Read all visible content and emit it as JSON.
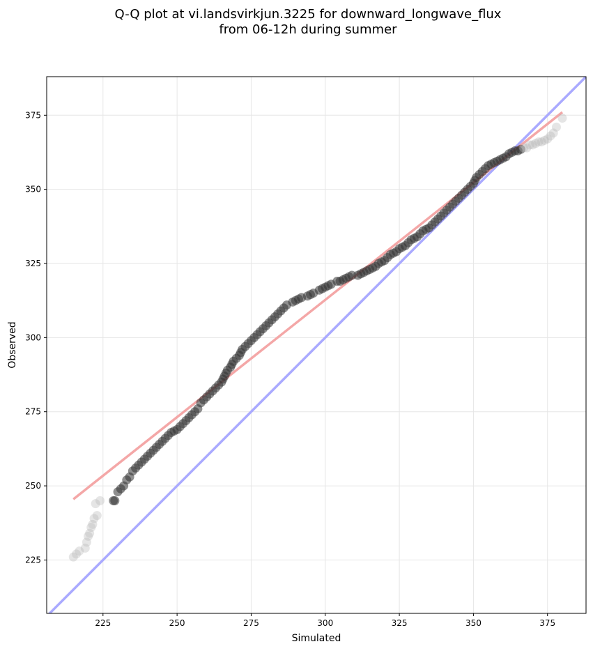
{
  "chart_data": {
    "type": "scatter",
    "title_line1": "Q-Q plot at vi.landsvirkjun.3225 for downward_longwave_flux",
    "title_line2": "from 06-12h during summer",
    "xlabel": "Simulated",
    "ylabel": "Observed",
    "xlim": [
      206,
      388
    ],
    "ylim": [
      207,
      388
    ],
    "xticks": [
      225,
      250,
      275,
      300,
      325,
      350,
      375
    ],
    "yticks": [
      225,
      250,
      275,
      300,
      325,
      350,
      375
    ],
    "grid": true,
    "identity_line": {
      "x": [
        206,
        388
      ],
      "y": [
        206,
        388
      ],
      "color": "#aaaaff"
    },
    "fit_line": {
      "x": [
        215,
        380
      ],
      "y": [
        245.5,
        376
      ],
      "color": "#f4a7a7"
    },
    "points": [
      [
        215,
        226
      ],
      [
        216,
        227
      ],
      [
        217,
        228
      ],
      [
        219,
        229
      ],
      [
        219.5,
        231
      ],
      [
        220,
        233
      ],
      [
        220.5,
        234
      ],
      [
        221,
        236
      ],
      [
        221.5,
        237
      ],
      [
        222,
        239
      ],
      [
        223,
        240
      ],
      [
        222.5,
        244
      ],
      [
        224,
        245
      ],
      [
        228.5,
        245
      ],
      [
        229,
        245
      ],
      [
        230,
        248
      ],
      [
        231,
        249
      ],
      [
        232,
        250
      ],
      [
        233,
        252
      ],
      [
        234,
        253
      ],
      [
        235,
        255
      ],
      [
        236,
        256
      ],
      [
        237,
        257
      ],
      [
        238,
        258
      ],
      [
        239,
        259
      ],
      [
        240,
        260
      ],
      [
        241,
        261
      ],
      [
        242,
        262
      ],
      [
        243,
        263
      ],
      [
        244,
        264
      ],
      [
        245,
        265
      ],
      [
        246,
        266
      ],
      [
        247,
        267
      ],
      [
        248,
        268
      ],
      [
        249,
        268.5
      ],
      [
        250,
        269
      ],
      [
        251,
        270
      ],
      [
        252,
        271
      ],
      [
        253,
        272
      ],
      [
        254,
        273
      ],
      [
        255,
        274
      ],
      [
        256,
        275
      ],
      [
        257,
        276
      ],
      [
        258,
        278
      ],
      [
        259,
        279
      ],
      [
        260,
        280
      ],
      [
        261,
        281
      ],
      [
        262,
        282
      ],
      [
        263,
        283
      ],
      [
        264,
        284
      ],
      [
        265,
        285
      ],
      [
        265.5,
        286
      ],
      [
        266,
        287
      ],
      [
        266.5,
        288
      ],
      [
        267,
        289
      ],
      [
        268,
        290
      ],
      [
        268.5,
        291
      ],
      [
        269,
        292
      ],
      [
        270,
        293
      ],
      [
        271,
        294
      ],
      [
        271.5,
        295
      ],
      [
        272,
        296
      ],
      [
        273,
        297
      ],
      [
        274,
        298
      ],
      [
        275,
        299
      ],
      [
        276,
        300
      ],
      [
        277,
        301
      ],
      [
        278,
        302
      ],
      [
        279,
        303
      ],
      [
        280,
        304
      ],
      [
        281,
        305
      ],
      [
        282,
        306
      ],
      [
        283,
        307
      ],
      [
        284,
        308
      ],
      [
        285,
        309
      ],
      [
        286,
        310
      ],
      [
        287,
        311
      ],
      [
        289,
        312
      ],
      [
        290,
        312.5
      ],
      [
        291,
        313
      ],
      [
        292,
        313.5
      ],
      [
        294,
        314
      ],
      [
        295,
        314.5
      ],
      [
        296,
        315
      ],
      [
        298,
        316
      ],
      [
        299,
        316.5
      ],
      [
        300,
        317
      ],
      [
        301,
        317.5
      ],
      [
        302,
        318
      ],
      [
        304,
        319
      ],
      [
        305,
        319
      ],
      [
        306,
        319.5
      ],
      [
        307,
        320
      ],
      [
        308,
        320.5
      ],
      [
        309,
        321
      ],
      [
        311,
        321
      ],
      [
        312,
        321.5
      ],
      [
        313,
        322
      ],
      [
        314,
        322.5
      ],
      [
        315,
        323
      ],
      [
        316,
        323.5
      ],
      [
        317,
        324
      ],
      [
        318,
        325
      ],
      [
        319,
        325.5
      ],
      [
        320,
        326
      ],
      [
        321,
        327
      ],
      [
        322,
        328
      ],
      [
        323,
        328.5
      ],
      [
        324,
        329
      ],
      [
        325,
        330
      ],
      [
        326,
        330.5
      ],
      [
        327,
        331
      ],
      [
        328,
        332
      ],
      [
        329,
        333
      ],
      [
        330,
        333.5
      ],
      [
        331,
        334
      ],
      [
        332,
        335
      ],
      [
        333,
        336
      ],
      [
        334,
        336.5
      ],
      [
        335,
        337
      ],
      [
        336,
        338
      ],
      [
        337,
        339
      ],
      [
        338,
        340
      ],
      [
        339,
        341
      ],
      [
        340,
        342
      ],
      [
        341,
        343
      ],
      [
        342,
        344
      ],
      [
        343,
        345
      ],
      [
        344,
        346
      ],
      [
        345,
        347
      ],
      [
        346,
        348
      ],
      [
        347,
        349
      ],
      [
        348,
        350
      ],
      [
        349,
        351
      ],
      [
        350,
        352
      ],
      [
        350.5,
        353
      ],
      [
        351,
        354
      ],
      [
        352,
        355
      ],
      [
        353,
        356
      ],
      [
        354,
        357
      ],
      [
        355,
        358
      ],
      [
        356,
        358.5
      ],
      [
        357,
        359
      ],
      [
        358,
        359.5
      ],
      [
        359,
        360
      ],
      [
        360,
        360.5
      ],
      [
        361,
        361
      ],
      [
        362,
        362
      ],
      [
        363,
        362.5
      ],
      [
        364,
        363
      ],
      [
        365,
        363
      ],
      [
        366,
        363.5
      ],
      [
        367,
        364
      ],
      [
        368,
        364
      ],
      [
        369,
        365
      ],
      [
        370,
        365
      ],
      [
        371,
        365.5
      ],
      [
        372,
        366
      ],
      [
        373,
        366
      ],
      [
        374,
        366.5
      ],
      [
        375,
        367
      ],
      [
        376,
        368
      ],
      [
        377,
        369
      ],
      [
        378,
        371
      ],
      [
        380,
        374
      ]
    ]
  }
}
